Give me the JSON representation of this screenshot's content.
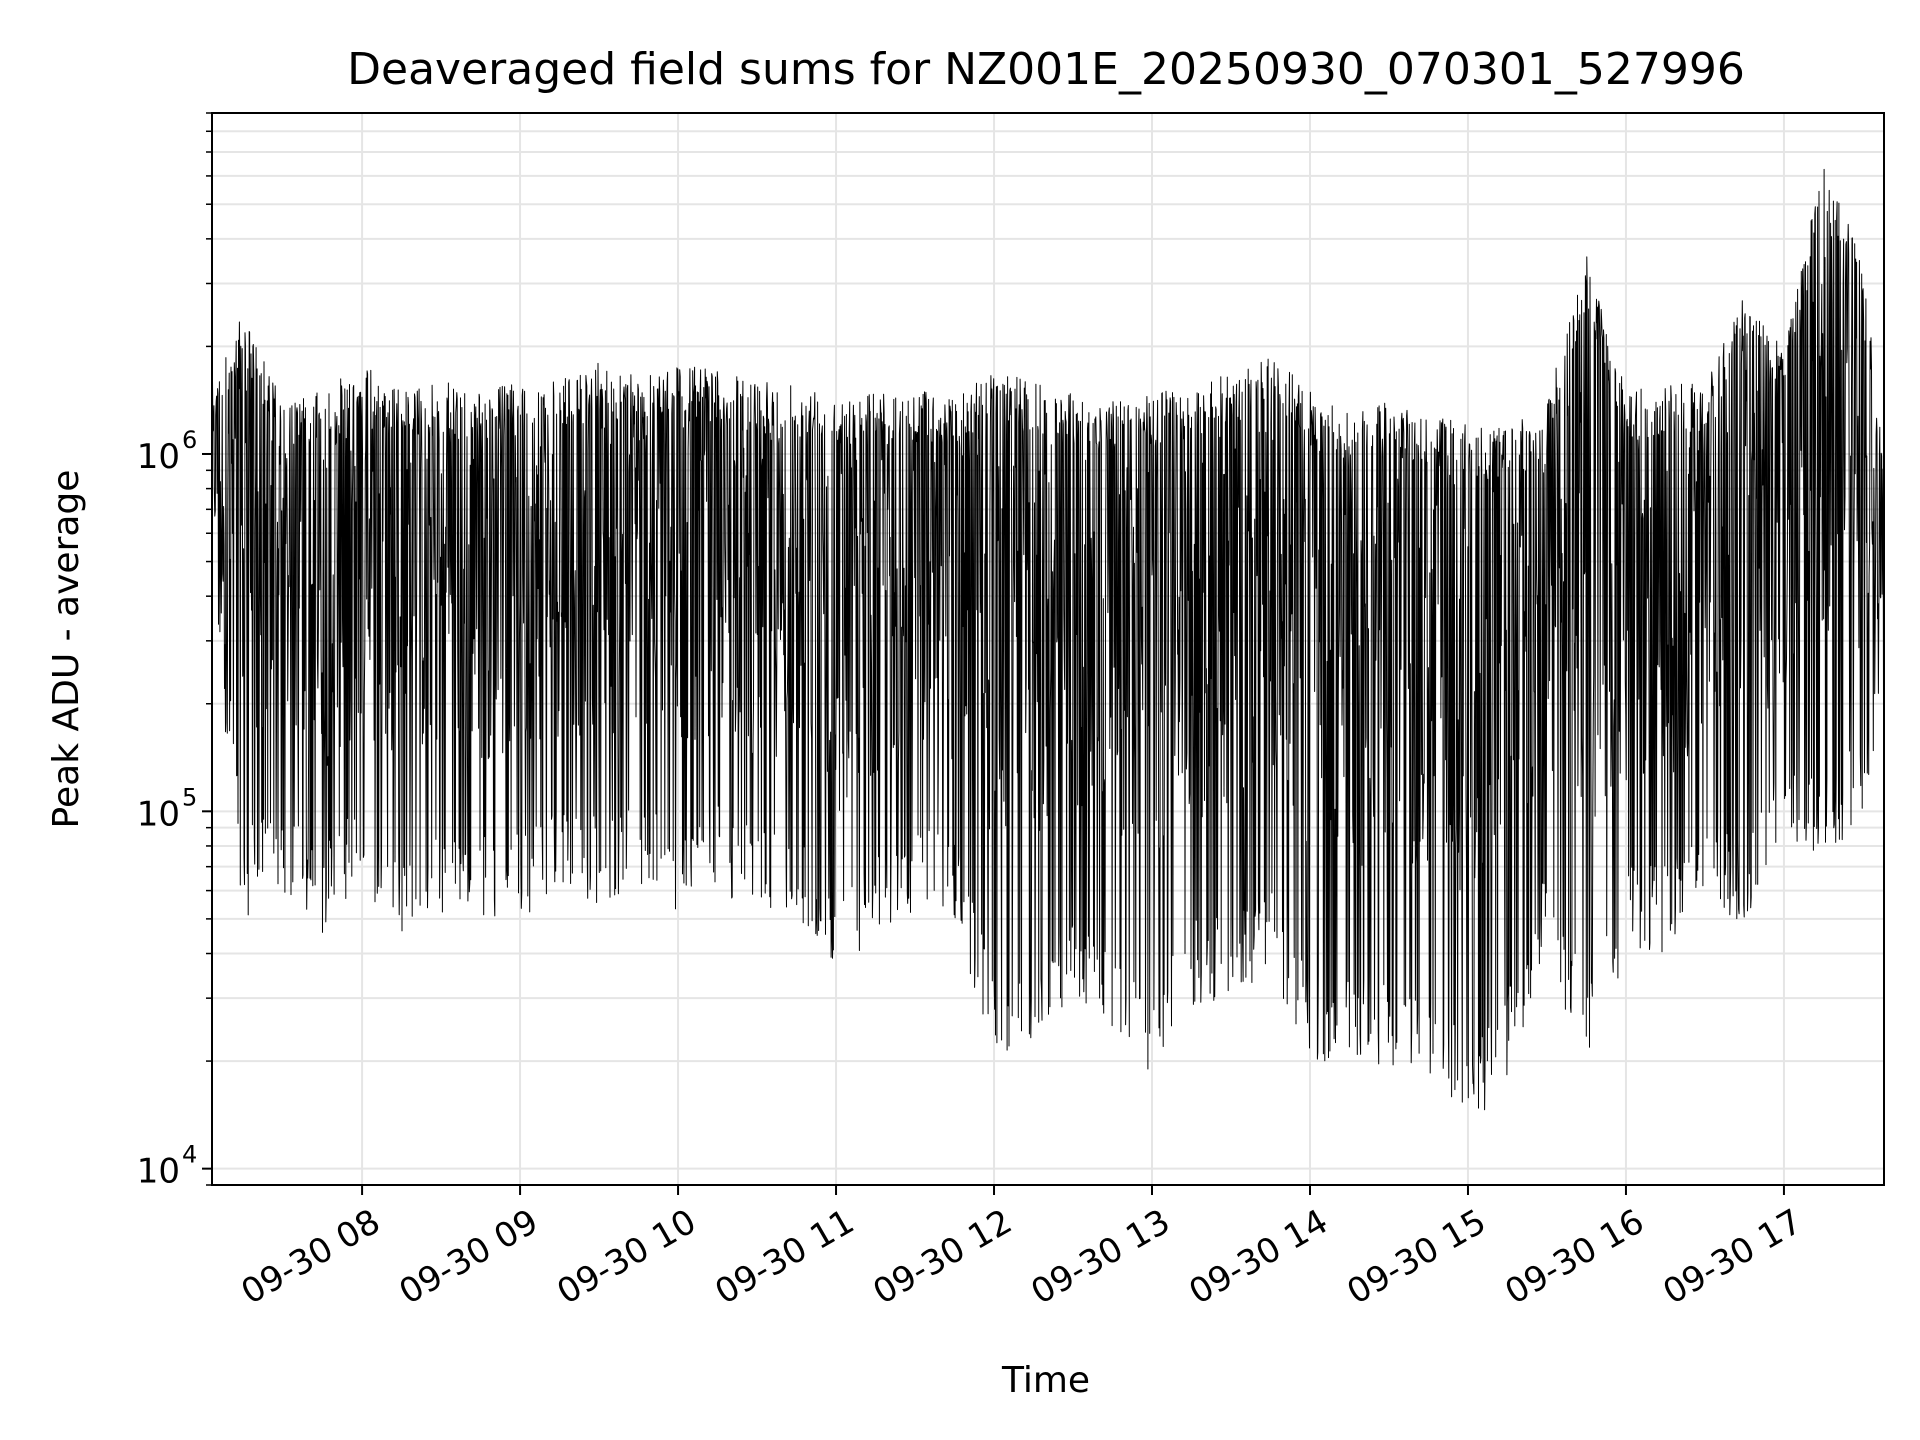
{
  "chart_data": {
    "type": "line",
    "title": "Deaveraged field sums for NZ001E_20250930_070301_527996",
    "xlabel": "Time",
    "ylabel": "Peak ADU - average",
    "yscale": "log",
    "ylim": [
      9000,
      9000000
    ],
    "xlim": [
      "2025-09-30 07:03",
      "2025-09-30 17:38"
    ],
    "grid": true,
    "x_tick_labels": [
      "09-30 08",
      "09-30 09",
      "09-30 10",
      "09-30 11",
      "09-30 12",
      "09-30 13",
      "09-30 14",
      "09-30 15",
      "09-30 16",
      "09-30 17"
    ],
    "x_tick_times": [
      "2025-09-30 08:00",
      "2025-09-30 09:00",
      "2025-09-30 10:00",
      "2025-09-30 11:00",
      "2025-09-30 12:00",
      "2025-09-30 13:00",
      "2025-09-30 14:00",
      "2025-09-30 15:00",
      "2025-09-30 16:00",
      "2025-09-30 17:00"
    ],
    "y_tick_labels": [
      {
        "base": "10",
        "exp": "4"
      },
      {
        "base": "10",
        "exp": "5"
      },
      {
        "base": "10",
        "exp": "6"
      }
    ],
    "y_tick_values": [
      10000,
      100000,
      1000000
    ],
    "line_color": "#000000",
    "series": [
      {
        "x": [
          "2025-09-30 07:03",
          "2025-09-30 07:15",
          "2025-09-30 07:30",
          "2025-09-30 07:45",
          "2025-09-30 08:00",
          "2025-09-30 08:15",
          "2025-09-30 08:30",
          "2025-09-30 08:45",
          "2025-09-30 09:00",
          "2025-09-30 09:15",
          "2025-09-30 09:30",
          "2025-09-30 09:45",
          "2025-09-30 10:00",
          "2025-09-30 10:15",
          "2025-09-30 10:30",
          "2025-09-30 10:45",
          "2025-09-30 11:00",
          "2025-09-30 11:15",
          "2025-09-30 11:30",
          "2025-09-30 11:45",
          "2025-09-30 12:00",
          "2025-09-30 12:15",
          "2025-09-30 12:30",
          "2025-09-30 12:45",
          "2025-09-30 13:00",
          "2025-09-30 13:15",
          "2025-09-30 13:30",
          "2025-09-30 13:45",
          "2025-09-30 14:00",
          "2025-09-30 14:15",
          "2025-09-30 14:30",
          "2025-09-30 14:45",
          "2025-09-30 15:00",
          "2025-09-30 15:15",
          "2025-09-30 15:30",
          "2025-09-30 15:45",
          "2025-09-30 16:00",
          "2025-09-30 16:15",
          "2025-09-30 16:30",
          "2025-09-30 16:45",
          "2025-09-30 17:00",
          "2025-09-30 17:15",
          "2025-09-30 17:30",
          "2025-09-30 17:38"
        ],
        "y_high": [
          1600000,
          2500000,
          1400000,
          1500000,
          1800000,
          1500000,
          1600000,
          1500000,
          1600000,
          1600000,
          1800000,
          1700000,
          1800000,
          1700000,
          1600000,
          1600000,
          1500000,
          1500000,
          1500000,
          1500000,
          1700000,
          1600000,
          1500000,
          1400000,
          1500000,
          1500000,
          1700000,
          1900000,
          1500000,
          1300000,
          1400000,
          1300000,
          1200000,
          1200000,
          1400000,
          3600000,
          1500000,
          1600000,
          1600000,
          2800000,
          2000000,
          7000000,
          3400000,
          1000000
        ],
        "y_low": [
          400000,
          50000,
          60000,
          45000,
          60000,
          45000,
          50000,
          50000,
          50000,
          60000,
          55000,
          60000,
          50000,
          60000,
          50000,
          50000,
          30000,
          45000,
          50000,
          50000,
          20000,
          22000,
          28000,
          25000,
          18000,
          28000,
          30000,
          35000,
          20000,
          20000,
          19000,
          18000,
          12500,
          18000,
          40000,
          18000,
          40000,
          40000,
          55000,
          48000,
          80000,
          75000,
          90000,
          200000
        ]
      }
    ]
  }
}
